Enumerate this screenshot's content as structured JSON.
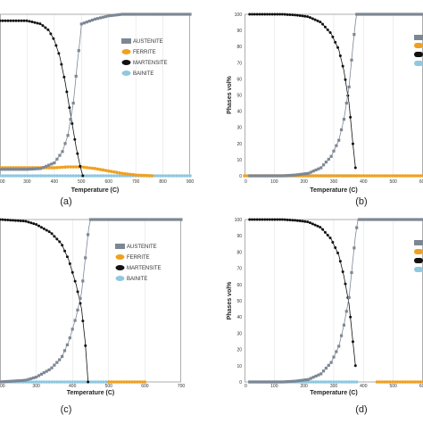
{
  "colors": {
    "austenite": "#7d8794",
    "ferrite": "#f0a020",
    "martensite": "#111111",
    "bainite": "#8fc8e0",
    "frame": "#9a9a9a",
    "grid": "#dddddd"
  },
  "chart_data": [
    {
      "type": "scatter",
      "panel_label": "(a)",
      "xlabel": "Temperature (C)",
      "ylabel": "",
      "xlim": [
        200,
        900
      ],
      "ylim": [
        0,
        100
      ],
      "x_ticks": [
        "00",
        "300",
        "400",
        "500",
        "600",
        "700",
        "800",
        "900"
      ],
      "y_ticks": [],
      "legend": [
        "AUSTENITE",
        "FERRITE",
        "MARTENSITE",
        "BAINITE"
      ],
      "series": [
        {
          "name": "AUSTENITE",
          "x": [
            200,
            300,
            350,
            400,
            430,
            450,
            470,
            485,
            495,
            500,
            550,
            600,
            650,
            700,
            900
          ],
          "y": [
            4,
            4,
            4.5,
            8,
            15,
            25,
            45,
            70,
            85,
            94,
            97,
            99,
            100,
            100,
            100
          ]
        },
        {
          "name": "FERRITE",
          "x": [
            200,
            300,
            400,
            450,
            500,
            550,
            600,
            650,
            700,
            760
          ],
          "y": [
            5,
            5,
            5,
            5.5,
            5.5,
            4.5,
            3,
            1.5,
            0.5,
            0
          ]
        },
        {
          "name": "MARTENSITE",
          "x": [
            200,
            300,
            350,
            380,
            400,
            420,
            440,
            460,
            480,
            495,
            505
          ],
          "y": [
            96,
            96,
            94,
            90,
            84,
            74,
            58,
            38,
            18,
            6,
            0
          ]
        },
        {
          "name": "BAINITE",
          "x": [
            200,
            900
          ],
          "y": [
            0,
            0
          ]
        }
      ]
    },
    {
      "type": "scatter",
      "panel_label": "(b)",
      "xlabel": "Temperature (C)",
      "ylabel": "Phases vol%",
      "xlim": [
        0,
        700
      ],
      "ylim": [
        0,
        100
      ],
      "x_ticks": [
        "0",
        "100",
        "200",
        "300",
        "400",
        "500",
        "600"
      ],
      "y_ticks": [
        "0",
        "10",
        "20",
        "30",
        "40",
        "50",
        "60",
        "70",
        "80",
        "90",
        "100"
      ],
      "legend": [],
      "series": [
        {
          "name": "AUSTENITE",
          "x": [
            20,
            150,
            200,
            250,
            300,
            340,
            370,
            390,
            410,
            425,
            435,
            440,
            500,
            700
          ],
          "y": [
            0,
            0,
            0.5,
            1.5,
            5,
            12,
            22,
            35,
            55,
            80,
            95,
            100,
            100,
            100
          ]
        },
        {
          "name": "FERRITE",
          "x": [
            0,
            450,
            700
          ],
          "y": [
            0,
            0,
            0
          ]
        },
        {
          "name": "MARTENSITE",
          "x": [
            20,
            150,
            200,
            250,
            300,
            340,
            370,
            390,
            410,
            425,
            435
          ],
          "y": [
            100,
            100,
            99.5,
            98.5,
            95,
            88,
            78,
            65,
            45,
            20,
            5
          ]
        },
        {
          "name": "BAINITE",
          "x": [
            20,
            440
          ],
          "y": [
            0,
            0
          ]
        }
      ]
    },
    {
      "type": "scatter",
      "panel_label": "(c)",
      "xlabel": "Temperature (C)",
      "ylabel": "",
      "xlim": [
        200,
        700
      ],
      "ylim": [
        0,
        100
      ],
      "x_ticks": [
        "00",
        "300",
        "400",
        "500",
        "600",
        "700"
      ],
      "y_ticks": [],
      "legend": [
        "AUSTENITE",
        "FERRITE",
        "MARTENSITE",
        "BAINITE"
      ],
      "series": [
        {
          "name": "AUSTENITE",
          "x": [
            200,
            270,
            300,
            340,
            370,
            390,
            410,
            425,
            435,
            445,
            450,
            500,
            700
          ],
          "y": [
            0,
            1,
            3,
            8,
            15,
            25,
            40,
            55,
            75,
            95,
            100,
            100,
            100
          ]
        },
        {
          "name": "FERRITE",
          "x": [
            500,
            580,
            600
          ],
          "y": [
            0,
            0,
            0
          ]
        },
        {
          "name": "MARTENSITE",
          "x": [
            200,
            270,
            300,
            340,
            370,
            390,
            410,
            425,
            435,
            443
          ],
          "y": [
            100,
            99,
            97,
            92,
            85,
            75,
            60,
            45,
            25,
            0
          ]
        },
        {
          "name": "BAINITE",
          "x": [
            200,
            500
          ],
          "y": [
            0,
            0
          ]
        }
      ]
    },
    {
      "type": "scatter",
      "panel_label": "(d)",
      "xlabel": "Temperature (C)",
      "ylabel": "Phases vol%",
      "xlim": [
        0,
        700
      ],
      "ylim": [
        0,
        100
      ],
      "x_ticks": [
        "0",
        "100",
        "200",
        "300",
        "400",
        "500",
        "600"
      ],
      "y_ticks": [
        "0",
        "10",
        "20",
        "30",
        "40",
        "50",
        "60",
        "70",
        "80",
        "90",
        "100"
      ],
      "legend": [],
      "series": [
        {
          "name": "AUSTENITE",
          "x": [
            20,
            150,
            200,
            250,
            300,
            340,
            370,
            390,
            410,
            425,
            435,
            445,
            500,
            700
          ],
          "y": [
            0,
            0,
            0.5,
            1.5,
            5,
            12,
            22,
            35,
            52,
            75,
            90,
            100,
            100,
            100
          ]
        },
        {
          "name": "FERRITE",
          "x": [
            520,
            700
          ],
          "y": [
            0,
            0
          ]
        },
        {
          "name": "MARTENSITE",
          "x": [
            20,
            150,
            200,
            250,
            300,
            340,
            370,
            390,
            410,
            425,
            435
          ],
          "y": [
            100,
            100,
            99.5,
            98.5,
            95,
            88,
            78,
            65,
            48,
            25,
            10
          ]
        },
        {
          "name": "BAINITE",
          "x": [
            20,
            440
          ],
          "y": [
            0,
            0
          ]
        }
      ]
    }
  ]
}
